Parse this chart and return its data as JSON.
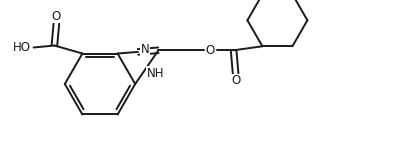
{
  "background_color": "#ffffff",
  "line_color": "#1a1a1a",
  "line_width": 1.4,
  "font_size": 8.5,
  "figsize": [
    4.0,
    1.66
  ],
  "dpi": 100,
  "xlim": [
    0,
    10
  ],
  "ylim": [
    0,
    4.15
  ]
}
